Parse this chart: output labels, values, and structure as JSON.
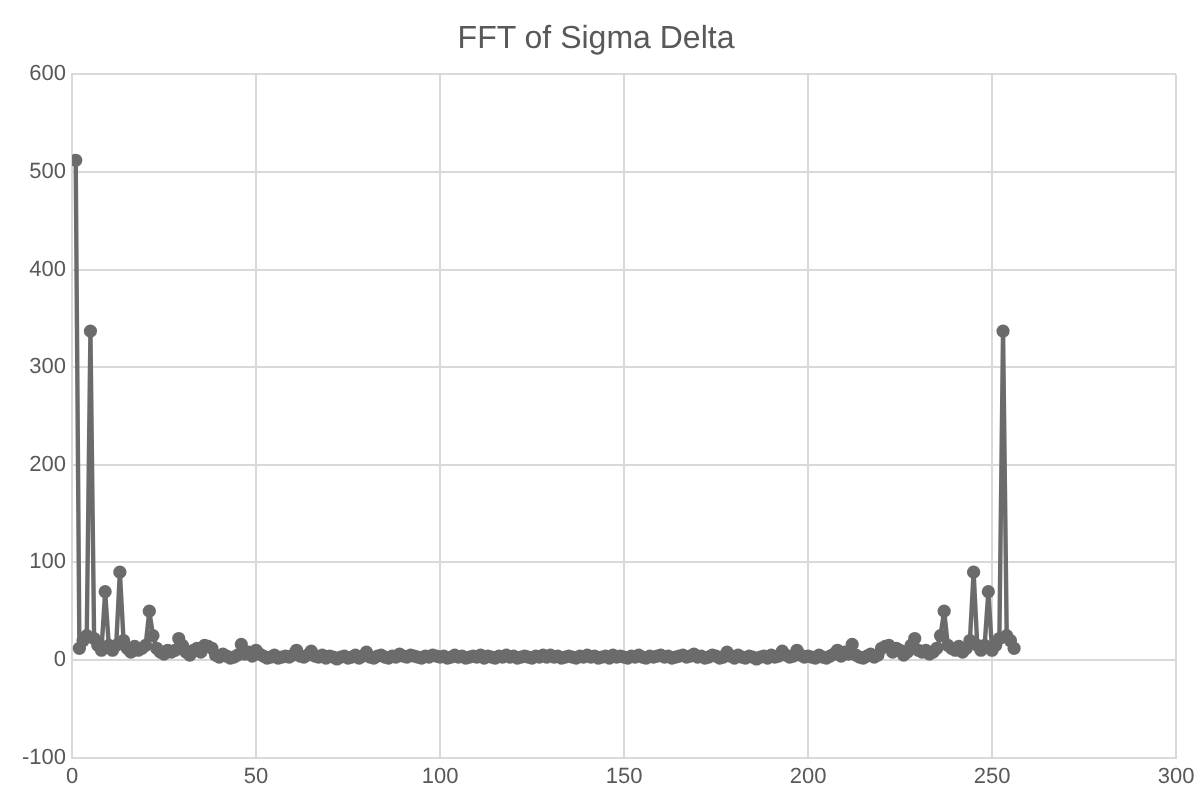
{
  "chart_data": {
    "type": "line",
    "title": "FFT of Sigma Delta",
    "xlim": [
      0,
      300
    ],
    "xticks": [
      0,
      50,
      100,
      150,
      200,
      250,
      300
    ],
    "ylim": [
      -100,
      600
    ],
    "yticks": [
      -100,
      0,
      100,
      200,
      300,
      400,
      500,
      600
    ],
    "grid": true,
    "legend": false,
    "marker": "circle",
    "line_style": "solid",
    "series": [
      {
        "color": "#6b6b6b",
        "x": [
          1,
          2,
          3,
          4,
          5,
          6,
          7,
          8,
          9,
          10,
          11,
          12,
          13,
          14,
          15,
          16,
          17,
          18,
          19,
          20,
          21,
          22,
          23,
          24,
          25,
          26,
          27,
          28,
          29,
          30,
          31,
          32,
          33,
          34,
          35,
          36,
          37,
          38,
          39,
          40,
          41,
          42,
          43,
          44,
          45,
          46,
          47,
          48,
          49,
          50,
          51,
          52,
          53,
          54,
          55,
          56,
          57,
          58,
          59,
          60,
          61,
          62,
          63,
          64,
          65,
          66,
          67,
          68,
          69,
          70,
          71,
          72,
          73,
          74,
          75,
          76,
          77,
          78,
          79,
          80,
          81,
          82,
          83,
          84,
          85,
          86,
          87,
          88,
          89,
          90,
          91,
          92,
          93,
          94,
          95,
          96,
          97,
          98,
          99,
          100,
          101,
          102,
          103,
          104,
          105,
          106,
          107,
          108,
          109,
          110,
          111,
          112,
          113,
          114,
          115,
          116,
          117,
          118,
          119,
          120,
          121,
          122,
          123,
          124,
          125,
          126,
          127,
          128,
          129,
          130,
          131,
          132,
          133,
          134,
          135,
          136,
          137,
          138,
          139,
          140,
          141,
          142,
          143,
          144,
          145,
          146,
          147,
          148,
          149,
          150,
          151,
          152,
          153,
          154,
          155,
          156,
          157,
          158,
          159,
          160,
          161,
          162,
          163,
          164,
          165,
          166,
          167,
          168,
          169,
          170,
          171,
          172,
          173,
          174,
          175,
          176,
          177,
          178,
          179,
          180,
          181,
          182,
          183,
          184,
          185,
          186,
          187,
          188,
          189,
          190,
          191,
          192,
          193,
          194,
          195,
          196,
          197,
          198,
          199,
          200,
          201,
          202,
          203,
          204,
          205,
          206,
          207,
          208,
          209,
          210,
          211,
          212,
          213,
          214,
          215,
          216,
          217,
          218,
          219,
          220,
          221,
          222,
          223,
          224,
          225,
          226,
          227,
          228,
          229,
          230,
          231,
          232,
          233,
          234,
          235,
          236,
          237,
          238,
          239,
          240,
          241,
          242,
          243,
          244,
          245,
          246,
          247,
          248,
          249,
          250,
          251,
          252,
          253,
          254,
          255,
          256
        ],
        "values": [
          512,
          12,
          20,
          25,
          337,
          22,
          15,
          10,
          70,
          15,
          10,
          15,
          90,
          20,
          12,
          8,
          14,
          10,
          12,
          15,
          50,
          25,
          12,
          8,
          6,
          10,
          8,
          10,
          22,
          15,
          8,
          5,
          10,
          12,
          8,
          15,
          14,
          12,
          5,
          3,
          6,
          4,
          2,
          3,
          5,
          16,
          6,
          8,
          4,
          10,
          6,
          4,
          2,
          3,
          5,
          2,
          3,
          4,
          3,
          5,
          10,
          4,
          3,
          5,
          9,
          4,
          3,
          5,
          2,
          4,
          3,
          1,
          3,
          4,
          2,
          3,
          5,
          2,
          4,
          8,
          3,
          2,
          4,
          5,
          3,
          2,
          4,
          3,
          6,
          4,
          3,
          5,
          4,
          3,
          2,
          4,
          3,
          5,
          4,
          3,
          4,
          2,
          3,
          5,
          3,
          4,
          2,
          3,
          4,
          3,
          5,
          2,
          4,
          3,
          2,
          4,
          3,
          5,
          3,
          4,
          2,
          3,
          4,
          3,
          2,
          4,
          3,
          5,
          3,
          5,
          3,
          4,
          2,
          3,
          4,
          3,
          2,
          4,
          3,
          5,
          3,
          4,
          2,
          3,
          4,
          2,
          5,
          3,
          4,
          3,
          2,
          4,
          3,
          5,
          3,
          2,
          4,
          3,
          4,
          5,
          3,
          4,
          2,
          3,
          4,
          5,
          3,
          4,
          6,
          3,
          4,
          2,
          3,
          5,
          4,
          2,
          3,
          8,
          4,
          2,
          5,
          3,
          2,
          4,
          3,
          1,
          3,
          4,
          2,
          5,
          3,
          4,
          9,
          5,
          3,
          4,
          10,
          5,
          3,
          4,
          3,
          2,
          5,
          3,
          2,
          4,
          6,
          10,
          4,
          8,
          6,
          16,
          5,
          3,
          2,
          4,
          6,
          3,
          5,
          12,
          14,
          15,
          8,
          12,
          10,
          5,
          8,
          15,
          22,
          10,
          8,
          10,
          6,
          8,
          12,
          25,
          50,
          15,
          12,
          10,
          14,
          8,
          12,
          20,
          90,
          15,
          10,
          15,
          70,
          10,
          15,
          22,
          337,
          25,
          20,
          12
        ]
      }
    ]
  }
}
